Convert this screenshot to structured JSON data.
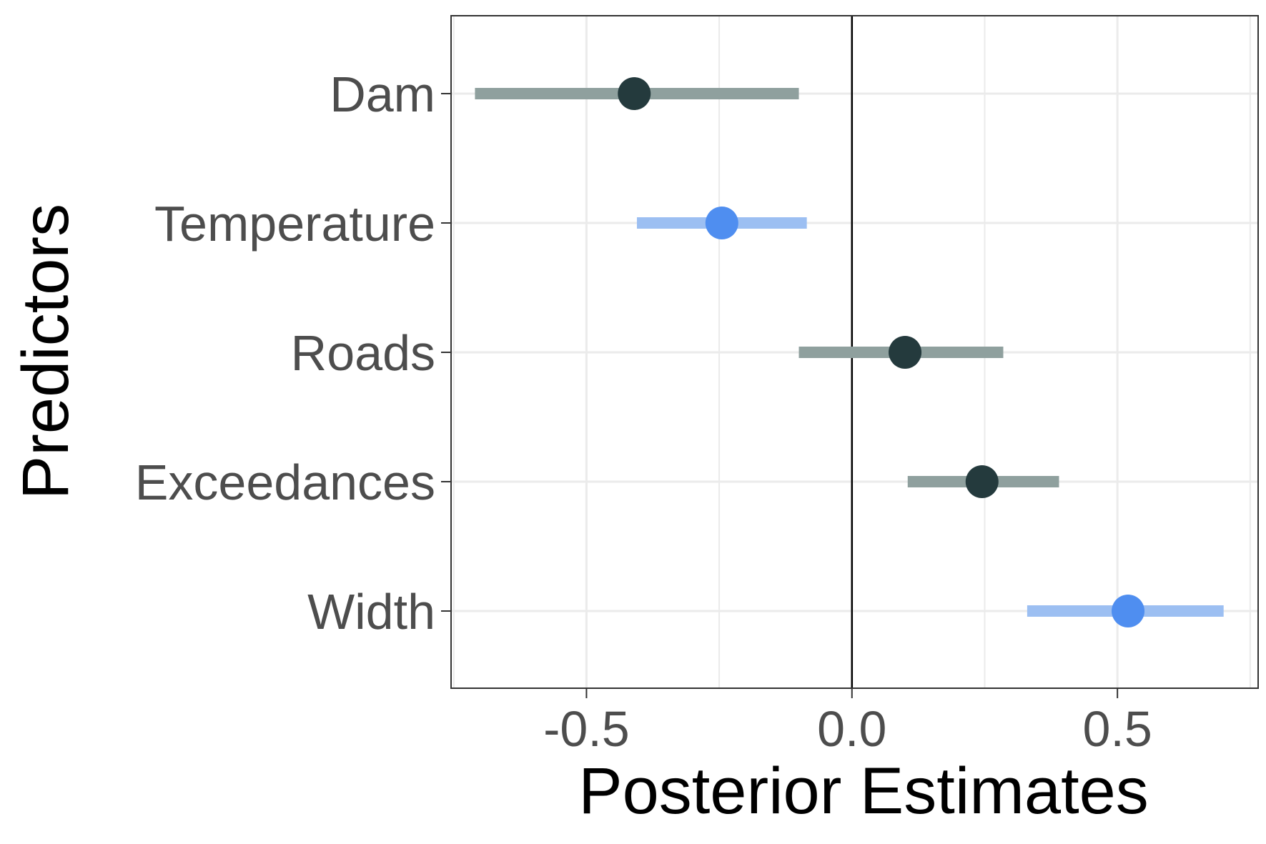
{
  "chart_data": {
    "type": "scatter",
    "subtype": "coefficient-interval-plot",
    "xlabel": "Posterior Estimates",
    "ylabel": "Predictors",
    "xlim": [
      -0.755,
      0.765
    ],
    "xticks": [
      -0.5,
      0.0,
      0.5
    ],
    "xtick_labels": [
      "-0.5",
      "0.0",
      "0.5"
    ],
    "reference_line_x": 0,
    "grid": true,
    "categories": [
      "Dam",
      "Temperature",
      "Roads",
      "Exceedances",
      "Width"
    ],
    "points": [
      {
        "label": "Dam",
        "estimate": -0.41,
        "lower": -0.71,
        "upper": -0.1,
        "group": "dark"
      },
      {
        "label": "Temperature",
        "estimate": -0.245,
        "lower": -0.405,
        "upper": -0.085,
        "group": "blue"
      },
      {
        "label": "Roads",
        "estimate": 0.1,
        "lower": -0.1,
        "upper": 0.285,
        "group": "dark"
      },
      {
        "label": "Exceedances",
        "estimate": 0.245,
        "lower": 0.105,
        "upper": 0.39,
        "group": "dark"
      },
      {
        "label": "Width",
        "estimate": 0.52,
        "lower": 0.33,
        "upper": 0.7,
        "group": "blue"
      }
    ],
    "colors": {
      "dark_point": "#243a3d",
      "dark_interval": "#8fa09e",
      "blue_point": "#4f8ef0",
      "blue_interval": "#9cbff2",
      "grid": "#ebebeb",
      "panel_border": "#333333",
      "zero_line": "#000000"
    }
  }
}
